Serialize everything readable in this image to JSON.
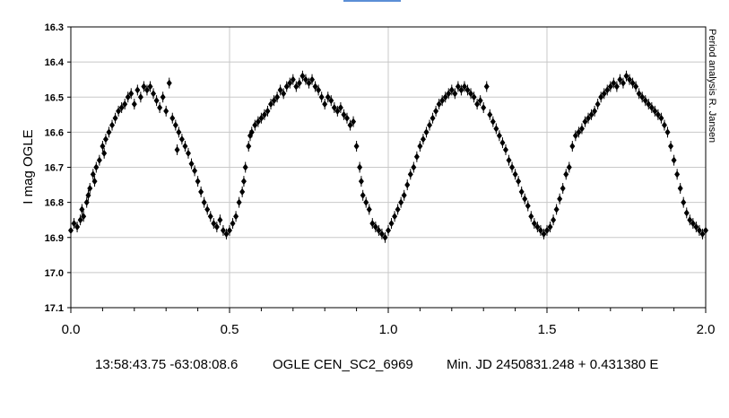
{
  "chart_data": {
    "type": "scatter",
    "title": "",
    "xlabel": "",
    "ylabel": "I mag OGLE",
    "side_note": "Period analysis R. Jansen",
    "xlim": [
      0.0,
      2.0
    ],
    "ylim": [
      16.3,
      17.1
    ],
    "y_inverted": true,
    "grid": true,
    "x_ticks": [
      "0.0",
      "0.5",
      "1.0",
      "1.5",
      "2.0"
    ],
    "y_ticks": [
      "16.3",
      "16.4",
      "16.5",
      "16.6",
      "16.7",
      "16.8",
      "16.9",
      "17.0",
      "17.1"
    ],
    "marker": "diamond",
    "marker_color": "#000000",
    "phase_model": {
      "period": 0.43138,
      "epoch": 2450831.248,
      "minimum_mag": 16.89,
      "maximum_mag": 16.47,
      "maximum_phase": 0.25
    },
    "series": [
      {
        "points": [
          [
            0.0,
            16.88
          ],
          [
            0.01,
            16.86
          ],
          [
            0.02,
            16.87
          ],
          [
            0.03,
            16.85
          ],
          [
            0.035,
            16.82
          ],
          [
            0.04,
            16.84
          ],
          [
            0.05,
            16.8
          ],
          [
            0.055,
            16.78
          ],
          [
            0.06,
            16.76
          ],
          [
            0.07,
            16.72
          ],
          [
            0.075,
            16.74
          ],
          [
            0.08,
            16.7
          ],
          [
            0.09,
            16.68
          ],
          [
            0.1,
            16.64
          ],
          [
            0.105,
            16.66
          ],
          [
            0.11,
            16.62
          ],
          [
            0.12,
            16.6
          ],
          [
            0.13,
            16.58
          ],
          [
            0.14,
            16.56
          ],
          [
            0.15,
            16.54
          ],
          [
            0.16,
            16.53
          ],
          [
            0.17,
            16.52
          ],
          [
            0.18,
            16.5
          ],
          [
            0.19,
            16.49
          ],
          [
            0.2,
            16.52
          ],
          [
            0.21,
            16.48
          ],
          [
            0.22,
            16.5
          ],
          [
            0.23,
            16.47
          ],
          [
            0.24,
            16.48
          ],
          [
            0.25,
            16.47
          ],
          [
            0.26,
            16.49
          ],
          [
            0.27,
            16.51
          ],
          [
            0.28,
            16.53
          ],
          [
            0.29,
            16.5
          ],
          [
            0.3,
            16.54
          ],
          [
            0.31,
            16.46
          ],
          [
            0.32,
            16.56
          ],
          [
            0.33,
            16.58
          ],
          [
            0.335,
            16.65
          ],
          [
            0.34,
            16.6
          ],
          [
            0.35,
            16.62
          ],
          [
            0.36,
            16.64
          ],
          [
            0.37,
            16.66
          ],
          [
            0.38,
            16.69
          ],
          [
            0.39,
            16.71
          ],
          [
            0.4,
            16.74
          ],
          [
            0.41,
            16.77
          ],
          [
            0.42,
            16.8
          ],
          [
            0.43,
            16.82
          ],
          [
            0.44,
            16.84
          ],
          [
            0.45,
            16.86
          ],
          [
            0.46,
            16.87
          ],
          [
            0.47,
            16.85
          ],
          [
            0.48,
            16.88
          ],
          [
            0.49,
            16.89
          ],
          [
            0.5,
            16.88
          ],
          [
            0.51,
            16.86
          ],
          [
            0.52,
            16.84
          ],
          [
            0.53,
            16.8
          ],
          [
            0.54,
            16.77
          ],
          [
            0.545,
            16.74
          ],
          [
            0.55,
            16.7
          ],
          [
            0.56,
            16.64
          ],
          [
            0.565,
            16.61
          ],
          [
            0.57,
            16.6
          ],
          [
            0.58,
            16.58
          ],
          [
            0.59,
            16.57
          ],
          [
            0.6,
            16.56
          ],
          [
            0.61,
            16.55
          ],
          [
            0.62,
            16.54
          ],
          [
            0.63,
            16.52
          ],
          [
            0.64,
            16.51
          ],
          [
            0.65,
            16.5
          ],
          [
            0.66,
            16.48
          ],
          [
            0.67,
            16.49
          ],
          [
            0.68,
            16.47
          ],
          [
            0.69,
            16.46
          ],
          [
            0.7,
            16.45
          ],
          [
            0.71,
            16.47
          ],
          [
            0.72,
            16.46
          ],
          [
            0.73,
            16.44
          ],
          [
            0.74,
            16.45
          ],
          [
            0.75,
            16.46
          ],
          [
            0.76,
            16.45
          ],
          [
            0.77,
            16.47
          ],
          [
            0.78,
            16.48
          ],
          [
            0.79,
            16.5
          ],
          [
            0.8,
            16.52
          ],
          [
            0.81,
            16.5
          ],
          [
            0.82,
            16.51
          ],
          [
            0.83,
            16.53
          ],
          [
            0.84,
            16.54
          ],
          [
            0.85,
            16.53
          ],
          [
            0.86,
            16.55
          ],
          [
            0.87,
            16.56
          ],
          [
            0.88,
            16.58
          ],
          [
            0.89,
            16.57
          ],
          [
            0.9,
            16.64
          ],
          [
            0.91,
            16.7
          ],
          [
            0.915,
            16.74
          ],
          [
            0.92,
            16.78
          ],
          [
            0.93,
            16.8
          ],
          [
            0.94,
            16.82
          ],
          [
            0.95,
            16.86
          ],
          [
            0.96,
            16.87
          ],
          [
            0.97,
            16.88
          ],
          [
            0.98,
            16.89
          ],
          [
            0.99,
            16.9
          ],
          [
            1.0,
            16.88
          ],
          [
            1.01,
            16.86
          ],
          [
            1.02,
            16.84
          ],
          [
            1.03,
            16.82
          ],
          [
            1.04,
            16.8
          ],
          [
            1.05,
            16.78
          ],
          [
            1.06,
            16.75
          ],
          [
            1.07,
            16.72
          ],
          [
            1.08,
            16.7
          ],
          [
            1.09,
            16.67
          ],
          [
            1.1,
            16.64
          ],
          [
            1.11,
            16.62
          ],
          [
            1.12,
            16.6
          ],
          [
            1.13,
            16.58
          ],
          [
            1.14,
            16.56
          ],
          [
            1.15,
            16.54
          ],
          [
            1.16,
            16.52
          ],
          [
            1.17,
            16.51
          ],
          [
            1.18,
            16.5
          ],
          [
            1.19,
            16.49
          ],
          [
            1.2,
            16.48
          ],
          [
            1.21,
            16.49
          ],
          [
            1.22,
            16.47
          ],
          [
            1.23,
            16.48
          ],
          [
            1.24,
            16.47
          ],
          [
            1.25,
            16.48
          ],
          [
            1.26,
            16.49
          ],
          [
            1.27,
            16.5
          ],
          [
            1.28,
            16.52
          ],
          [
            1.29,
            16.51
          ],
          [
            1.3,
            16.53
          ],
          [
            1.31,
            16.47
          ],
          [
            1.32,
            16.55
          ],
          [
            1.33,
            16.57
          ],
          [
            1.34,
            16.59
          ],
          [
            1.35,
            16.61
          ],
          [
            1.36,
            16.63
          ],
          [
            1.37,
            16.65
          ],
          [
            1.38,
            16.68
          ],
          [
            1.39,
            16.7
          ],
          [
            1.4,
            16.72
          ],
          [
            1.41,
            16.74
          ],
          [
            1.42,
            16.77
          ],
          [
            1.43,
            16.79
          ],
          [
            1.44,
            16.81
          ],
          [
            1.45,
            16.84
          ],
          [
            1.46,
            16.86
          ],
          [
            1.47,
            16.87
          ],
          [
            1.48,
            16.88
          ],
          [
            1.49,
            16.89
          ],
          [
            1.5,
            16.88
          ],
          [
            1.51,
            16.87
          ],
          [
            1.52,
            16.85
          ],
          [
            1.53,
            16.82
          ],
          [
            1.54,
            16.79
          ],
          [
            1.55,
            16.76
          ],
          [
            1.56,
            16.72
          ],
          [
            1.57,
            16.7
          ],
          [
            1.58,
            16.64
          ],
          [
            1.59,
            16.61
          ],
          [
            1.6,
            16.6
          ],
          [
            1.61,
            16.59
          ],
          [
            1.62,
            16.57
          ],
          [
            1.63,
            16.56
          ],
          [
            1.64,
            16.55
          ],
          [
            1.65,
            16.54
          ],
          [
            1.66,
            16.52
          ],
          [
            1.67,
            16.5
          ],
          [
            1.68,
            16.49
          ],
          [
            1.69,
            16.48
          ],
          [
            1.7,
            16.47
          ],
          [
            1.71,
            16.46
          ],
          [
            1.72,
            16.47
          ],
          [
            1.73,
            16.45
          ],
          [
            1.74,
            16.46
          ],
          [
            1.75,
            16.44
          ],
          [
            1.76,
            16.45
          ],
          [
            1.77,
            16.46
          ],
          [
            1.78,
            16.47
          ],
          [
            1.79,
            16.49
          ],
          [
            1.8,
            16.5
          ],
          [
            1.81,
            16.51
          ],
          [
            1.82,
            16.52
          ],
          [
            1.83,
            16.53
          ],
          [
            1.84,
            16.54
          ],
          [
            1.85,
            16.55
          ],
          [
            1.86,
            16.56
          ],
          [
            1.87,
            16.58
          ],
          [
            1.88,
            16.6
          ],
          [
            1.89,
            16.64
          ],
          [
            1.9,
            16.68
          ],
          [
            1.91,
            16.72
          ],
          [
            1.92,
            16.76
          ],
          [
            1.93,
            16.8
          ],
          [
            1.94,
            16.83
          ],
          [
            1.95,
            16.85
          ],
          [
            1.96,
            16.86
          ],
          [
            1.97,
            16.87
          ],
          [
            1.98,
            16.88
          ],
          [
            1.99,
            16.89
          ],
          [
            2.0,
            16.88
          ]
        ]
      }
    ]
  },
  "caption": {
    "coordinates": "13:58:43.75 -63:08:08.6",
    "star": "OGLE CEN_SC2_6969",
    "ephemeris": "Min. JD 2450831.248 + 0.431380 E"
  }
}
